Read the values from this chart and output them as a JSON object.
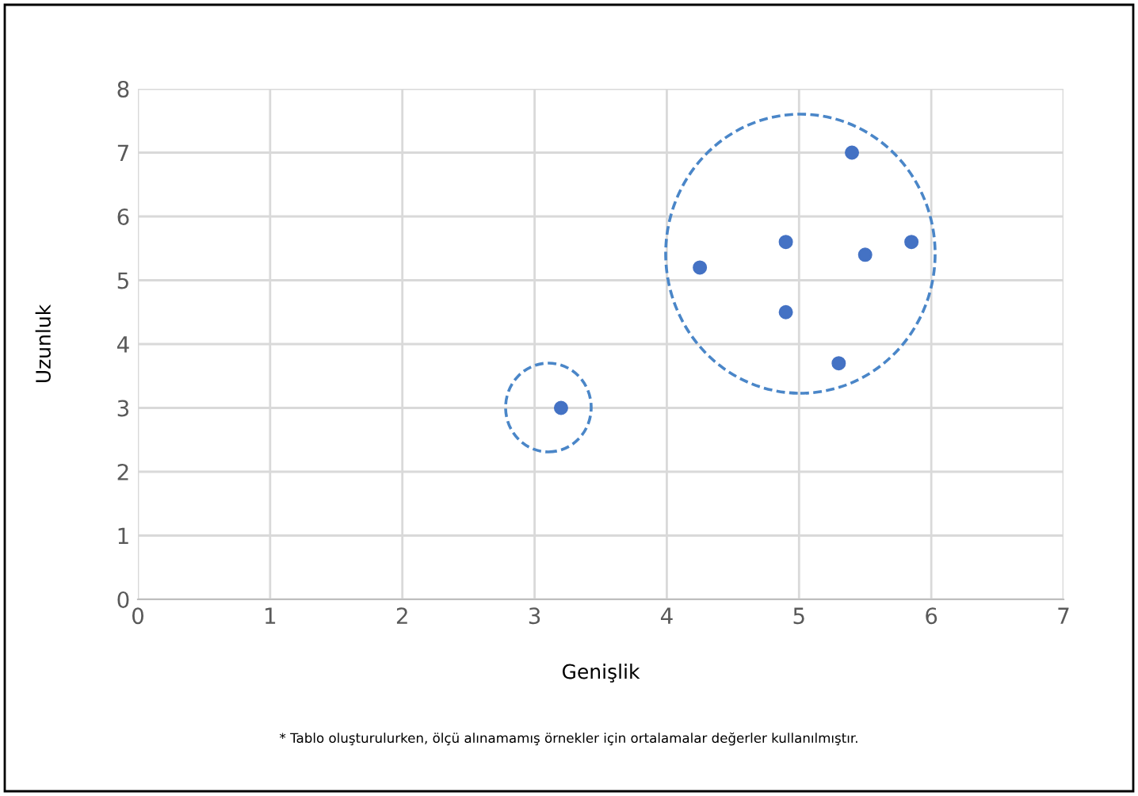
{
  "chart_data": {
    "type": "scatter",
    "xlabel": "Genişlik",
    "ylabel": "Uzunluk",
    "annotations": [
      "* Tablo oluşturulurken, ölçü alınamamış örnekler için ortalamalar değerler kullanılmıştır."
    ],
    "x": [
      3.2,
      4.25,
      4.9,
      4.9,
      5.4,
      5.5,
      5.85,
      5.3
    ],
    "series": [
      {
        "color": "#4472c4",
        "values": [
          3.0,
          5.2,
          5.6,
          4.5,
          7.0,
          5.4,
          5.6,
          3.7
        ]
      }
    ],
    "xlim": [
      0,
      7
    ],
    "ylim": [
      0,
      8
    ],
    "xticks": [
      0,
      1,
      2,
      3,
      4,
      5,
      6,
      7
    ],
    "yticks": [
      0,
      1,
      2,
      3,
      4,
      5,
      6,
      7,
      8
    ],
    "grid": true,
    "marker": "circle",
    "legend": false
  }
}
